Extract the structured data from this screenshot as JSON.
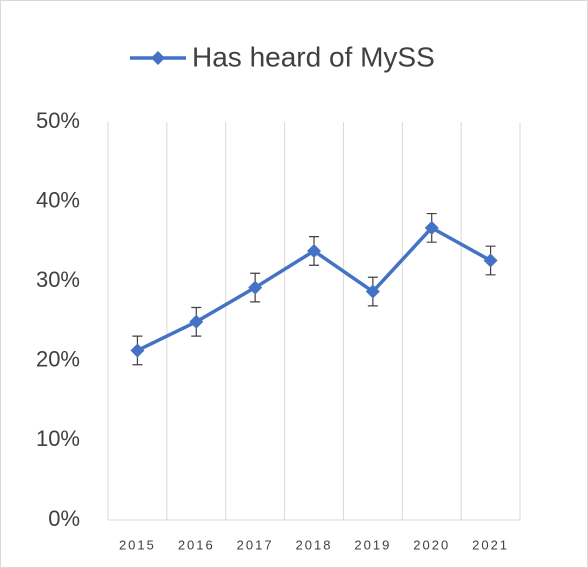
{
  "chart_data": {
    "type": "line",
    "categories": [
      "2015",
      "2016",
      "2017",
      "2018",
      "2019",
      "2020",
      "2021"
    ],
    "series": [
      {
        "name": "Has heard of MySS",
        "color": "#4472c4",
        "values": [
          21.3,
          24.9,
          29.2,
          33.8,
          28.7,
          36.7,
          32.6
        ],
        "errors": [
          1.8,
          1.8,
          1.8,
          1.8,
          1.8,
          1.8,
          1.8
        ]
      }
    ],
    "ylim": [
      0,
      50
    ],
    "yticks": [
      {
        "value": 0,
        "label": "0%"
      },
      {
        "value": 10,
        "label": "10%"
      },
      {
        "value": 20,
        "label": "20%"
      },
      {
        "value": 30,
        "label": "30%"
      },
      {
        "value": 40,
        "label": "40%"
      },
      {
        "value": 50,
        "label": "50%"
      }
    ],
    "grid": true,
    "legend": "top"
  }
}
